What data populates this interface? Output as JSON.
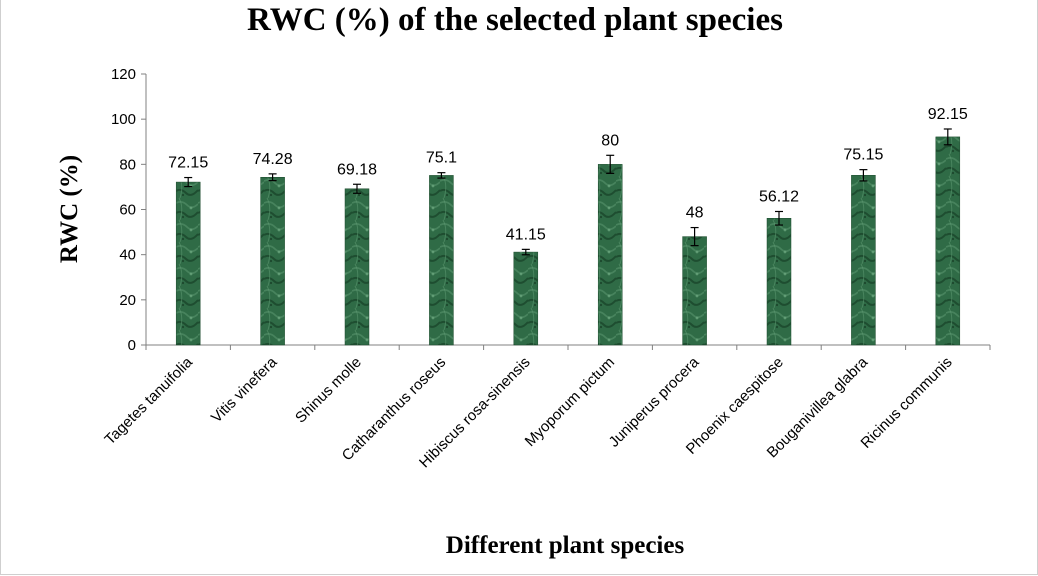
{
  "chart_data": {
    "type": "bar",
    "title": "RWC (%) of the selected plant species",
    "xlabel": "Different plant species",
    "ylabel": "RWC (%)",
    "ylim": [
      0,
      120
    ],
    "yticks": [
      0,
      20,
      40,
      60,
      80,
      100,
      120
    ],
    "grid": false,
    "categories": [
      "Tagetes tanuifolia",
      "Vitis vinefera",
      "Shinus molle",
      "Catharanthus roseus",
      "Hibiscus rosa-sinensis",
      "Myoporum pictum",
      "Juniperus procera",
      "Phoenix caespitose",
      "Bouganivillea glabra",
      "Ricinus communis"
    ],
    "values": [
      72.15,
      74.28,
      69.18,
      75.1,
      41.15,
      80,
      48,
      56.12,
      75.15,
      92.15
    ],
    "value_labels": [
      "72.15",
      "74.28",
      "69.18",
      "75.1",
      "41.15",
      "80",
      "48",
      "56.12",
      "75.15",
      "92.15"
    ],
    "errors": [
      2,
      1.5,
      2,
      1.2,
      1.2,
      4,
      4,
      3,
      2.5,
      3.5
    ],
    "bar_color": "#2e6b45",
    "bar_color_dark": "#1b4a2c"
  }
}
